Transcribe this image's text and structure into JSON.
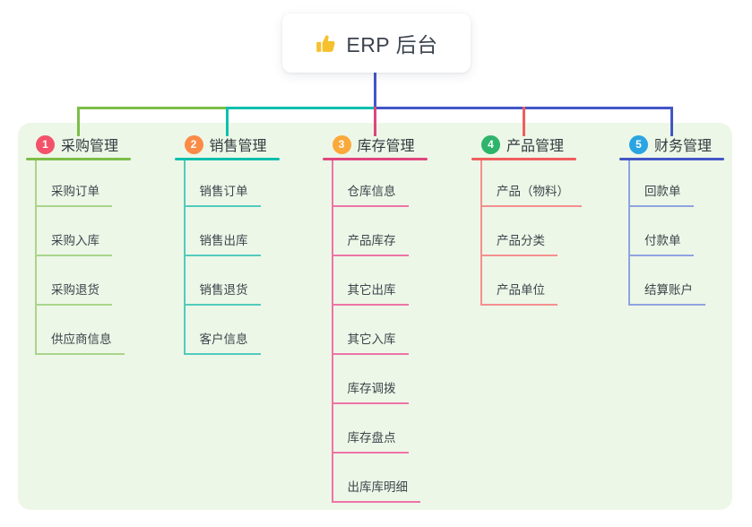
{
  "root": {
    "label": "ERP 后台",
    "icon": "thumbs-up-icon",
    "icon_color": "#f6c12e"
  },
  "canvas": {
    "background": "#ffffff",
    "panel_background": "#edf7e7",
    "trunk_color": "#4356c6"
  },
  "branches": [
    {
      "index": "1",
      "label": "采购管理",
      "badge_color": "#f4526b",
      "line_color": "#7cbe49",
      "child_line_color": "#a9d58b",
      "children": [
        "采购订单",
        "采购入库",
        "采购退货",
        "供应商信息"
      ]
    },
    {
      "index": "2",
      "label": "销售管理",
      "badge_color": "#fb8b47",
      "line_color": "#0fbfad",
      "child_line_color": "#52cbbd",
      "children": [
        "销售订单",
        "销售出库",
        "销售退货",
        "客户信息"
      ]
    },
    {
      "index": "3",
      "label": "库存管理",
      "badge_color": "#fba93a",
      "line_color": "#e0457f",
      "child_line_color": "#ed74a8",
      "children": [
        "仓库信息",
        "产品库存",
        "其它出库",
        "其它入库",
        "库存调拨",
        "库存盘点",
        "出库库明细"
      ]
    },
    {
      "index": "4",
      "label": "产品管理",
      "badge_color": "#2eb46b",
      "line_color": "#f15e5e",
      "child_line_color": "#f58f8f",
      "children": [
        "产品（物料）",
        "产品分类",
        "产品单位"
      ]
    },
    {
      "index": "5",
      "label": "财务管理",
      "badge_color": "#2aa5e2",
      "line_color": "#4356c6",
      "child_line_color": "#8fa3e0",
      "children": [
        "回款单",
        "付款单",
        "结算账户"
      ]
    }
  ]
}
